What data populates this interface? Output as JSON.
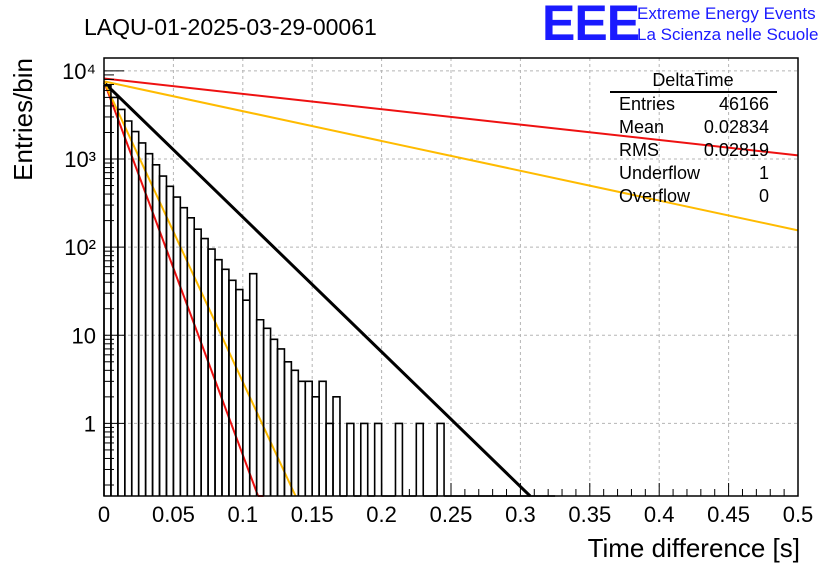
{
  "header": {
    "run_title": "LAQU-01-2025-03-29-00061",
    "logo": "EEE",
    "logo_line1": "Extreme Energy Events",
    "logo_line2": "La Scienza nelle Scuole"
  },
  "stats_box": {
    "title": "DeltaTime",
    "rows": [
      {
        "label": "Entries",
        "value": "46166"
      },
      {
        "label": "Mean",
        "value": "0.02834"
      },
      {
        "label": "RMS",
        "value": "0.02819"
      },
      {
        "label": "Underflow",
        "value": "1"
      },
      {
        "label": "Overflow",
        "value": "0"
      }
    ]
  },
  "chart_data": {
    "type": "histogram",
    "xlabel": "Time difference [s]",
    "ylabel": "Entries/bin",
    "xlim": [
      0,
      0.5
    ],
    "ylim": [
      0.15,
      14000
    ],
    "yscale": "log",
    "grid": true,
    "x_ticks": [
      "0",
      "0.05",
      "0.1",
      "0.15",
      "0.2",
      "0.25",
      "0.3",
      "0.35",
      "0.4",
      "0.45",
      "0.5"
    ],
    "y_ticks": [
      "1",
      "10",
      "10²",
      "10³",
      "10⁴"
    ],
    "bin_width": 0.005,
    "histogram_values": [
      6800,
      5000,
      3650,
      2700,
      2050,
      1520,
      1150,
      860,
      640,
      490,
      370,
      280,
      215,
      160,
      125,
      95,
      72,
      56,
      42,
      33,
      25,
      50,
      15,
      12,
      9,
      7,
      5,
      4,
      3,
      3,
      2,
      3,
      1,
      2,
      0,
      1,
      0,
      1,
      0,
      1,
      0,
      0,
      1,
      0,
      0,
      1,
      0,
      0,
      1,
      0,
      0,
      0,
      0,
      0,
      0,
      0,
      0,
      0,
      0,
      0,
      0,
      0,
      0,
      0,
      0
    ],
    "series": [
      {
        "name": "fit",
        "color": "#000000",
        "function": "exponential",
        "x": [
          0.0,
          0.307
        ],
        "y": [
          7400,
          0.15
        ]
      },
      {
        "name": "red-slow",
        "color": "#ee1111",
        "function": "exponential",
        "x": [
          0.0,
          0.5
        ],
        "y": [
          8200,
          1100
        ]
      },
      {
        "name": "orange-slow",
        "color": "#ffbb00",
        "function": "exponential",
        "x": [
          0.0,
          0.5
        ],
        "y": [
          7600,
          155
        ]
      },
      {
        "name": "red-fast",
        "color": "#ee1111",
        "function": "exponential",
        "x": [
          0.0,
          0.111
        ],
        "y": [
          7600,
          0.15
        ]
      },
      {
        "name": "orange-fast",
        "color": "#ffbb00",
        "function": "exponential",
        "x": [
          0.0,
          0.138
        ],
        "y": [
          7600,
          0.15
        ]
      }
    ]
  }
}
